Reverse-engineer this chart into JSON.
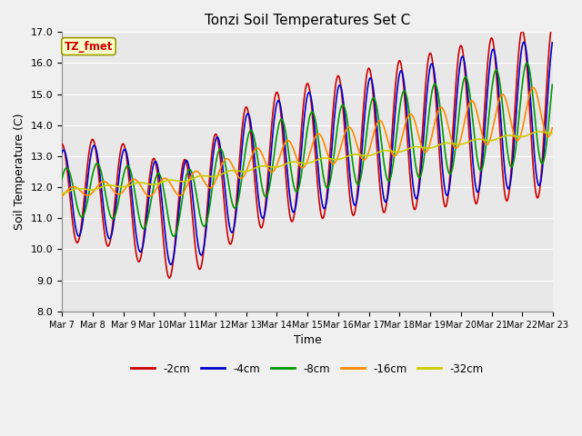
{
  "title": "Tonzi Soil Temperatures Set C",
  "xlabel": "Time",
  "ylabel": "Soil Temperature (C)",
  "ylim": [
    8.0,
    17.0
  ],
  "yticks": [
    8.0,
    9.0,
    10.0,
    11.0,
    12.0,
    13.0,
    14.0,
    15.0,
    16.0,
    17.0
  ],
  "series_colors": {
    "-2cm": "#cc0000",
    "-4cm": "#0000cc",
    "-8cm": "#009900",
    "-16cm": "#ff8800",
    "-32cm": "#cccc00"
  },
  "annotation_text": "TZ_fmet",
  "annotation_color": "#cc0000",
  "annotation_bg": "#ffffcc",
  "annotation_border": "#999900",
  "plot_bg": "#e8e8e8",
  "fig_bg": "#f0f0f0",
  "grid_color": "#ffffff",
  "n_days": 16,
  "start_day": 7,
  "figsize": [
    6.4,
    4.8
  ],
  "dpi": 100
}
